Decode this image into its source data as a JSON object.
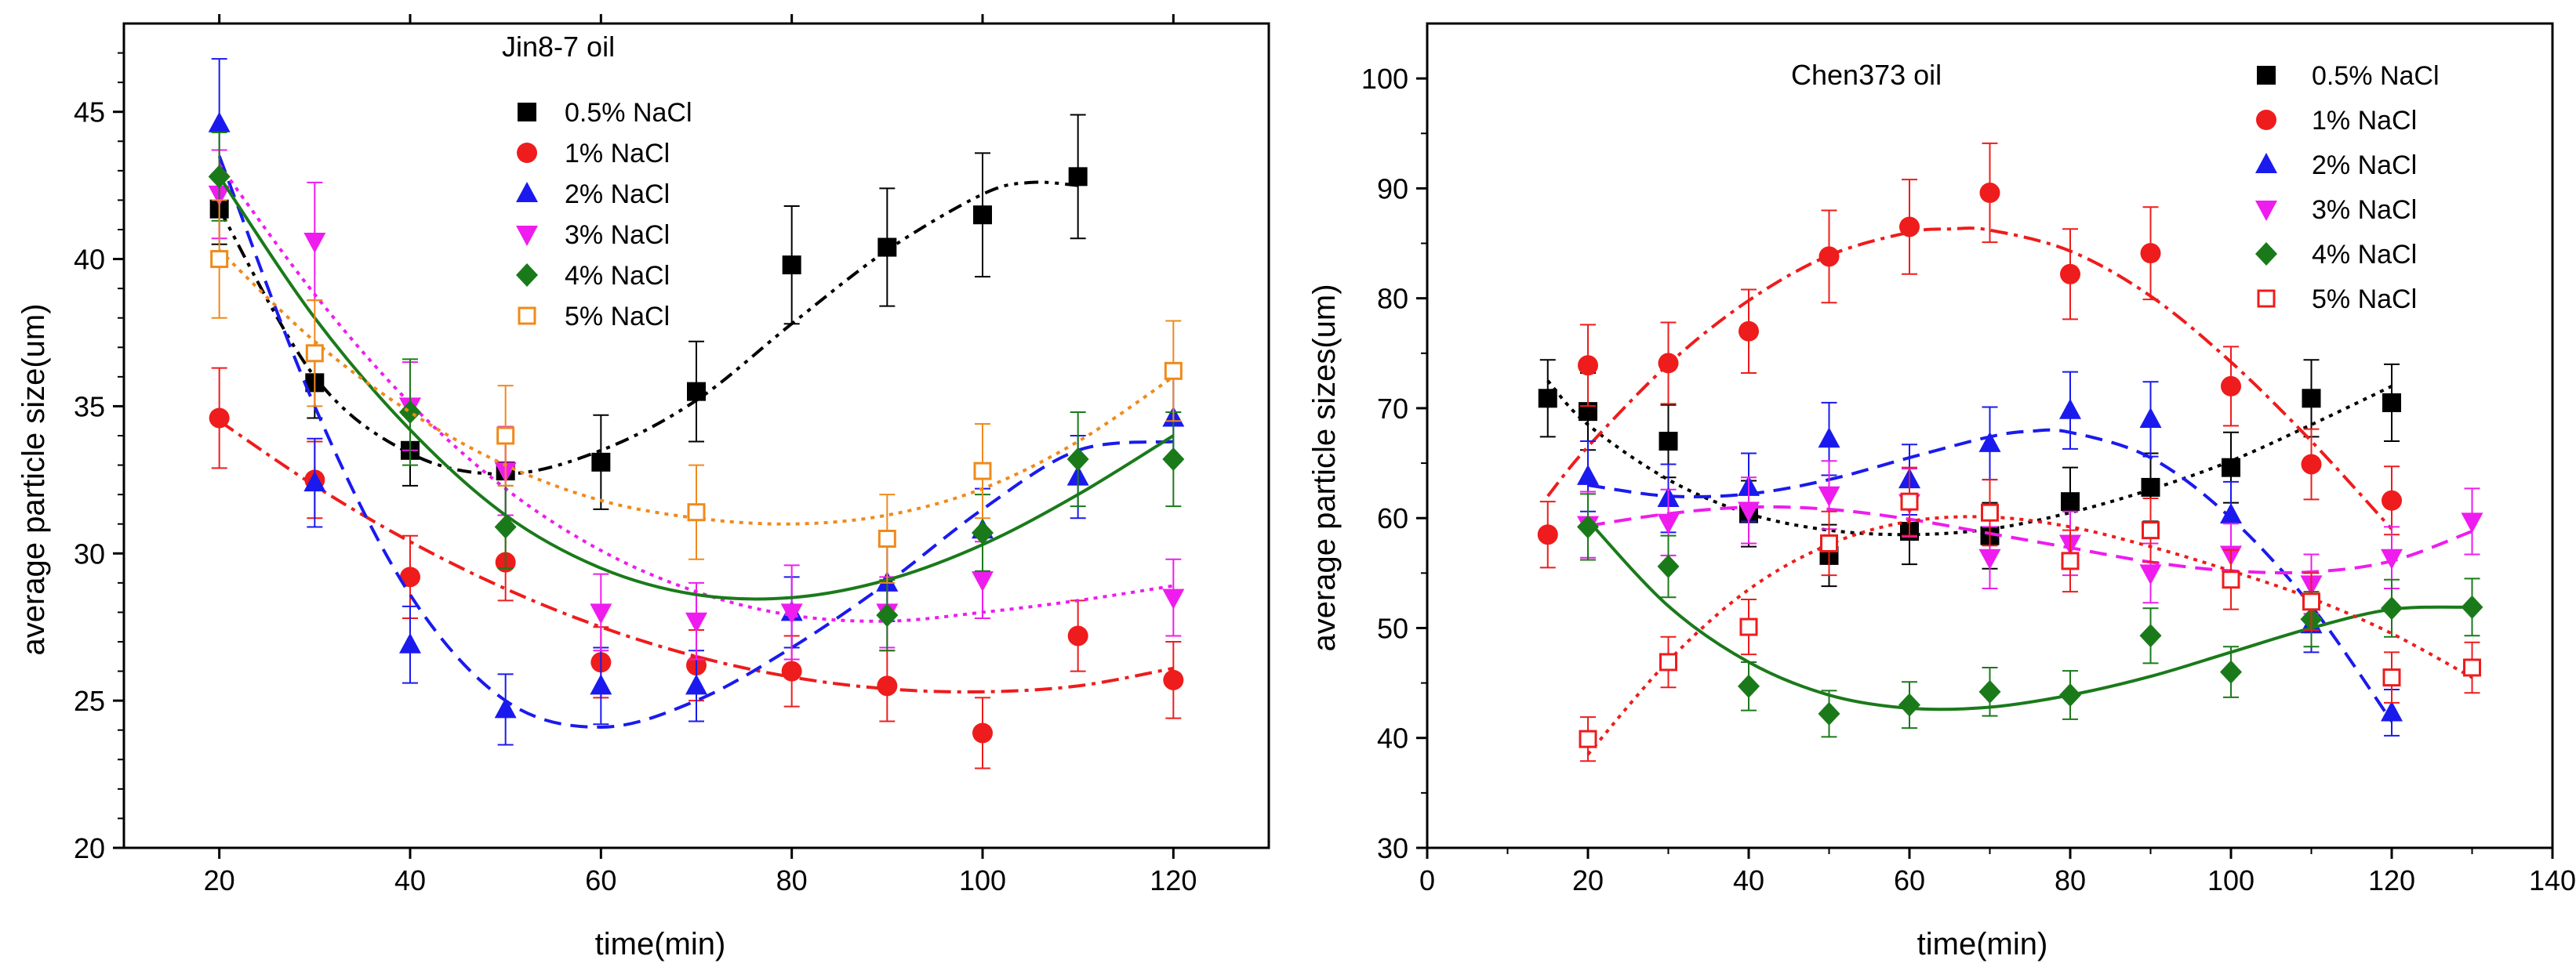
{
  "chart_data": [
    {
      "type": "scatter",
      "title": "Jin8-7 oil",
      "xlabel": "time(min)",
      "ylabel": "average particle size(um)",
      "xlim": [
        10,
        130
      ],
      "ylim": [
        20,
        48
      ],
      "xticks": [
        20,
        40,
        60,
        80,
        100,
        120
      ],
      "yticks": [
        20,
        25,
        30,
        35,
        40,
        45
      ],
      "series": [
        {
          "name": "0.5% NaCl",
          "color": "#000000",
          "marker": "square-filled",
          "line": "dashdotdot",
          "x": [
            20,
            30,
            40,
            50,
            60,
            70,
            80,
            90,
            100,
            110
          ],
          "y": [
            41.7,
            35.8,
            33.5,
            32.8,
            33.1,
            35.5,
            39.8,
            40.4,
            41.5,
            42.8
          ],
          "err": [
            1.2,
            1.2,
            1.2,
            1.5,
            1.6,
            1.7,
            2.0,
            2.0,
            2.1,
            2.1
          ],
          "fit": [
            [
              20,
              41.7
            ],
            [
              30,
              36.0
            ],
            [
              40,
              33.4
            ],
            [
              50,
              32.7
            ],
            [
              60,
              33.5
            ],
            [
              70,
              35.2
            ],
            [
              80,
              37.8
            ],
            [
              90,
              40.3
            ],
            [
              100,
              42.2
            ],
            [
              105,
              42.6
            ],
            [
              110,
              42.5
            ]
          ]
        },
        {
          "name": "1% NaCl",
          "color": "#ee1c1c",
          "marker": "circle-filled",
          "line": "dashdot",
          "x": [
            20,
            30,
            40,
            50,
            60,
            70,
            80,
            90,
            100,
            110,
            120
          ],
          "y": [
            34.6,
            32.5,
            29.2,
            29.7,
            26.3,
            26.2,
            26.0,
            25.5,
            23.9,
            27.2,
            25.7
          ],
          "err": [
            1.7,
            1.3,
            1.4,
            1.3,
            1.2,
            1.2,
            1.2,
            1.2,
            1.2,
            1.2,
            1.3
          ],
          "fit": [
            [
              20,
              34.5
            ],
            [
              30,
              32.3
            ],
            [
              40,
              30.4
            ],
            [
              50,
              28.8
            ],
            [
              60,
              27.5
            ],
            [
              70,
              26.5
            ],
            [
              80,
              25.8
            ],
            [
              90,
              25.4
            ],
            [
              100,
              25.3
            ],
            [
              110,
              25.5
            ],
            [
              120,
              26.1
            ]
          ]
        },
        {
          "name": "2% NaCl",
          "color": "#1a1aee",
          "marker": "triangle-up-filled",
          "line": "dash",
          "x": [
            20,
            30,
            40,
            50,
            60,
            70,
            80,
            90,
            100,
            110,
            120
          ],
          "y": [
            44.6,
            32.4,
            26.9,
            24.7,
            25.5,
            25.5,
            28.0,
            29.0,
            30.8,
            32.6,
            34.6
          ],
          "err": [
            2.2,
            1.5,
            1.3,
            1.2,
            1.3,
            1.2,
            1.2,
            1.3,
            1.4,
            1.4,
            1.5
          ],
          "fit": [
            [
              20,
              43.5
            ],
            [
              30,
              35.0
            ],
            [
              40,
              28.6
            ],
            [
              50,
              25.0
            ],
            [
              60,
              24.1
            ],
            [
              70,
              25.0
            ],
            [
              80,
              26.8
            ],
            [
              90,
              29.0
            ],
            [
              100,
              31.5
            ],
            [
              110,
              33.5
            ],
            [
              120,
              33.8
            ]
          ]
        },
        {
          "name": "3% NaCl",
          "color": "#ee1cee",
          "marker": "triangle-down-filled",
          "line": "dot",
          "x": [
            20,
            30,
            40,
            50,
            60,
            70,
            80,
            90,
            100,
            120
          ],
          "y": [
            42.2,
            40.6,
            35.0,
            32.8,
            28.0,
            27.7,
            28.0,
            28.0,
            29.1,
            28.5
          ],
          "err": [
            1.5,
            2.0,
            1.5,
            1.5,
            1.3,
            1.3,
            1.6,
            1.2,
            1.3,
            1.3
          ],
          "fit": [
            [
              20,
              43.2
            ],
            [
              30,
              38.8
            ],
            [
              40,
              35.1
            ],
            [
              50,
              32.2
            ],
            [
              60,
              30.1
            ],
            [
              70,
              28.7
            ],
            [
              80,
              27.9
            ],
            [
              90,
              27.7
            ],
            [
              100,
              28.0
            ],
            [
              110,
              28.4
            ],
            [
              120,
              28.9
            ]
          ]
        },
        {
          "name": "4% NaCl",
          "color": "#1a7a1a",
          "marker": "diamond-filled",
          "line": "solid",
          "x": [
            20,
            40,
            50,
            90,
            100,
            110,
            120
          ],
          "y": [
            42.8,
            34.8,
            30.9,
            27.9,
            30.7,
            33.2,
            33.2
          ],
          "err": [
            1.5,
            1.8,
            1.4,
            1.2,
            1.3,
            1.6,
            1.6
          ],
          "fit": [
            [
              20,
              42.8
            ],
            [
              30,
              38.0
            ],
            [
              40,
              34.2
            ],
            [
              50,
              31.3
            ],
            [
              60,
              29.5
            ],
            [
              70,
              28.6
            ],
            [
              80,
              28.5
            ],
            [
              90,
              29.1
            ],
            [
              100,
              30.3
            ],
            [
              110,
              32.0
            ],
            [
              120,
              34.0
            ]
          ]
        },
        {
          "name": "5% NaCl",
          "color": "#f08a1a",
          "marker": "square-open",
          "line": "dot",
          "x": [
            20,
            30,
            50,
            70,
            90,
            100,
            120
          ],
          "y": [
            40.0,
            36.8,
            34.0,
            31.4,
            30.5,
            32.8,
            36.2
          ],
          "err": [
            2.0,
            1.8,
            1.7,
            1.6,
            1.5,
            1.6,
            1.7
          ],
          "fit": [
            [
              20,
              40.3
            ],
            [
              30,
              37.2
            ],
            [
              40,
              34.8
            ],
            [
              50,
              33.0
            ],
            [
              60,
              31.8
            ],
            [
              70,
              31.2
            ],
            [
              80,
              31.0
            ],
            [
              90,
              31.3
            ],
            [
              100,
              32.2
            ],
            [
              110,
              33.8
            ],
            [
              120,
              36.0
            ]
          ]
        }
      ]
    },
    {
      "type": "scatter",
      "title": "Chen373 oil",
      "xlabel": "time(min)",
      "ylabel": "average particle sizes(um)",
      "xlim": [
        0,
        140
      ],
      "ylim": [
        30,
        105
      ],
      "xticks": [
        0,
        20,
        40,
        60,
        80,
        100,
        120,
        140
      ],
      "yticks": [
        30,
        40,
        50,
        60,
        70,
        80,
        90,
        100
      ],
      "series": [
        {
          "name": "0.5% NaCl",
          "color": "#000000",
          "marker": "square-filled",
          "line": "dot",
          "x": [
            15,
            20,
            30,
            40,
            50,
            60,
            70,
            80,
            90,
            100,
            110,
            120
          ],
          "y": [
            70.9,
            69.7,
            67.0,
            60.4,
            56.6,
            58.8,
            58.4,
            61.5,
            62.8,
            64.6,
            70.9,
            70.5
          ],
          "err": [
            3.5,
            3.5,
            3.3,
            3.0,
            2.8,
            3.0,
            3.0,
            3.1,
            3.1,
            3.2,
            3.5,
            3.5
          ],
          "fit": [
            [
              15,
              72.5
            ],
            [
              20,
              68.5
            ],
            [
              30,
              63.5
            ],
            [
              40,
              60.4
            ],
            [
              50,
              58.9
            ],
            [
              60,
              58.5
            ],
            [
              70,
              59.0
            ],
            [
              80,
              60.5
            ],
            [
              90,
              62.6
            ],
            [
              100,
              65.2
            ],
            [
              110,
              68.5
            ],
            [
              120,
              72.0
            ]
          ]
        },
        {
          "name": "1% NaCl",
          "color": "#ee1c1c",
          "marker": "circle-filled",
          "line": "dashdot",
          "x": [
            15,
            20,
            30,
            40,
            50,
            60,
            70,
            80,
            90,
            100,
            110,
            120
          ],
          "y": [
            58.5,
            73.9,
            74.1,
            77.0,
            83.8,
            86.5,
            89.6,
            82.2,
            84.1,
            72.0,
            64.9,
            61.6
          ],
          "err": [
            3.0,
            3.7,
            3.7,
            3.8,
            4.2,
            4.3,
            4.5,
            4.1,
            4.2,
            3.6,
            3.2,
            3.1
          ],
          "fit": [
            [
              15,
              62.0
            ],
            [
              20,
              66.5
            ],
            [
              30,
              74.0
            ],
            [
              40,
              79.8
            ],
            [
              50,
              83.9
            ],
            [
              60,
              86.0
            ],
            [
              65,
              86.3
            ],
            [
              70,
              86.2
            ],
            [
              80,
              84.3
            ],
            [
              90,
              80.2
            ],
            [
              100,
              74.2
            ],
            [
              110,
              67.0
            ],
            [
              120,
              59.0
            ]
          ]
        },
        {
          "name": "2% NaCl",
          "color": "#1a1aee",
          "marker": "triangle-up-filled",
          "line": "dash",
          "x": [
            20,
            30,
            40,
            50,
            60,
            70,
            80,
            90,
            100,
            110,
            120
          ],
          "y": [
            63.8,
            61.8,
            62.8,
            67.2,
            63.5,
            66.8,
            69.8,
            69.0,
            60.3,
            50.3,
            42.3
          ],
          "err": [
            3.2,
            3.1,
            3.1,
            3.3,
            3.2,
            3.3,
            3.5,
            3.4,
            3.0,
            2.5,
            2.1
          ],
          "fit": [
            [
              20,
              63.0
            ],
            [
              30,
              62.0
            ],
            [
              40,
              62.2
            ],
            [
              50,
              63.5
            ],
            [
              60,
              65.5
            ],
            [
              70,
              67.4
            ],
            [
              75,
              67.9
            ],
            [
              80,
              67.8
            ],
            [
              90,
              65.5
            ],
            [
              100,
              60.0
            ],
            [
              110,
              52.0
            ],
            [
              120,
              41.5
            ]
          ]
        },
        {
          "name": "3% NaCl",
          "color": "#ee1cee",
          "marker": "triangle-down-filled",
          "line": "dash",
          "x": [
            20,
            30,
            40,
            50,
            60,
            70,
            80,
            90,
            100,
            110,
            120,
            130
          ],
          "y": [
            59.4,
            59.6,
            60.7,
            62.1,
            61.4,
            56.4,
            57.7,
            55.0,
            56.7,
            54.0,
            56.4,
            59.7
          ],
          "err": [
            3.0,
            3.0,
            3.0,
            3.1,
            3.1,
            2.8,
            2.9,
            2.7,
            2.8,
            2.7,
            2.8,
            3.0
          ],
          "fit": [
            [
              20,
              59.3
            ],
            [
              30,
              60.4
            ],
            [
              40,
              61.0
            ],
            [
              50,
              60.8
            ],
            [
              60,
              59.9
            ],
            [
              70,
              58.6
            ],
            [
              80,
              57.3
            ],
            [
              90,
              56.0
            ],
            [
              100,
              55.2
            ],
            [
              110,
              55.1
            ],
            [
              120,
              56.1
            ],
            [
              130,
              58.8
            ]
          ]
        },
        {
          "name": "4% NaCl",
          "color": "#1a7a1a",
          "marker": "diamond-filled",
          "line": "solid",
          "x": [
            20,
            30,
            40,
            50,
            60,
            70,
            80,
            90,
            100,
            110,
            120,
            130
          ],
          "y": [
            59.2,
            55.6,
            44.7,
            42.2,
            43.0,
            44.2,
            43.9,
            49.3,
            46.0,
            50.8,
            51.8,
            51.9
          ],
          "err": [
            3.0,
            2.8,
            2.2,
            2.1,
            2.1,
            2.2,
            2.2,
            2.5,
            2.3,
            2.5,
            2.6,
            2.6
          ],
          "fit": [
            [
              20,
              59.8
            ],
            [
              30,
              52.0
            ],
            [
              40,
              46.9
            ],
            [
              50,
              43.9
            ],
            [
              60,
              42.7
            ],
            [
              70,
              42.8
            ],
            [
              80,
              43.9
            ],
            [
              90,
              45.6
            ],
            [
              100,
              47.8
            ],
            [
              110,
              50.0
            ],
            [
              120,
              51.7
            ],
            [
              130,
              51.9
            ]
          ]
        },
        {
          "name": "5% NaCl",
          "color": "#ee1c1c",
          "marker": "square-open",
          "line": "dot",
          "x": [
            20,
            30,
            40,
            50,
            60,
            70,
            80,
            90,
            100,
            110,
            120,
            130
          ],
          "y": [
            39.9,
            46.9,
            50.1,
            57.7,
            61.5,
            60.5,
            56.1,
            58.9,
            54.4,
            52.4,
            45.5,
            46.4
          ],
          "err": [
            2.0,
            2.3,
            2.5,
            2.9,
            3.1,
            3.0,
            2.8,
            2.9,
            2.7,
            2.6,
            2.3,
            2.3
          ],
          "fit": [
            [
              20,
              38.5
            ],
            [
              30,
              47.0
            ],
            [
              40,
              53.5
            ],
            [
              50,
              57.6
            ],
            [
              60,
              59.7
            ],
            [
              70,
              60.1
            ],
            [
              80,
              59.2
            ],
            [
              90,
              57.4
            ],
            [
              100,
              55.2
            ],
            [
              110,
              52.7
            ],
            [
              120,
              49.5
            ],
            [
              130,
              45.5
            ]
          ]
        }
      ]
    }
  ]
}
